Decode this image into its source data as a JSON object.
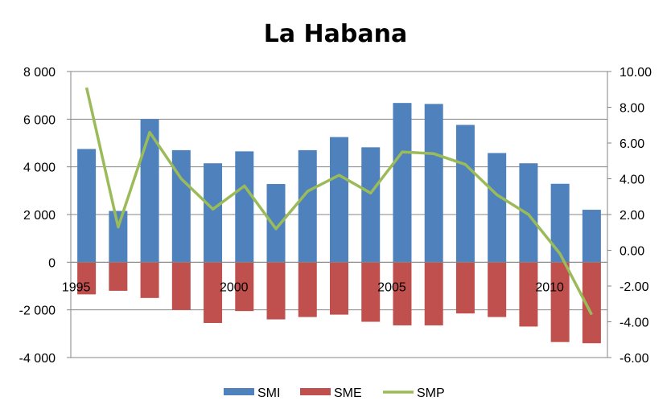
{
  "chart_data": {
    "type": "bar",
    "title": "La Habana",
    "categories": [
      "1995",
      "1996",
      "1997",
      "1998",
      "1999",
      "2000",
      "2001",
      "2002",
      "2003",
      "2004",
      "2005",
      "2006",
      "2007",
      "2008",
      "2009",
      "2010",
      "2011"
    ],
    "x_tick_labels": [
      {
        "category": "1995",
        "label": "1995"
      },
      {
        "category": "2000",
        "label": "2000"
      },
      {
        "category": "2005",
        "label": "2005"
      },
      {
        "category": "2010",
        "label": "2010"
      }
    ],
    "series": [
      {
        "name": "SMI",
        "kind": "bar",
        "axis": "left",
        "color": "#4F81BD",
        "values": [
          4750,
          2150,
          6000,
          4700,
          4150,
          4650,
          3280,
          4700,
          5250,
          4820,
          6680,
          6640,
          5760,
          4580,
          4150,
          3290,
          2200
        ]
      },
      {
        "name": "SME",
        "kind": "bar",
        "axis": "left",
        "color": "#C0504D",
        "values": [
          -1350,
          -1200,
          -1500,
          -2000,
          -2550,
          -2050,
          -2400,
          -2300,
          -2200,
          -2500,
          -2650,
          -2650,
          -2150,
          -2300,
          -2700,
          -3350,
          -3400
        ]
      },
      {
        "name": "SMP",
        "kind": "line",
        "axis": "right",
        "color": "#9BBB59",
        "values": [
          9.1,
          1.3,
          6.6,
          4.0,
          2.3,
          3.6,
          1.2,
          3.3,
          4.2,
          3.2,
          5.5,
          5.4,
          4.8,
          3.1,
          2.0,
          -0.2,
          -3.6
        ]
      }
    ],
    "y_left": {
      "lim": [
        -4000,
        8000
      ],
      "step": 2000,
      "tick_labels": [
        "8 000",
        "6 000",
        "4 000",
        "2 000",
        "0",
        "-2 000",
        "-4 000"
      ]
    },
    "y_right": {
      "lim": [
        -6,
        10
      ],
      "step": 2,
      "tick_labels": [
        "10.00",
        "8.00",
        "6.00",
        "4.00",
        "2.00",
        "0.00",
        "-2.00",
        "-4.00",
        "-6.00"
      ]
    },
    "grid": true,
    "legend_position": "bottom-center"
  }
}
